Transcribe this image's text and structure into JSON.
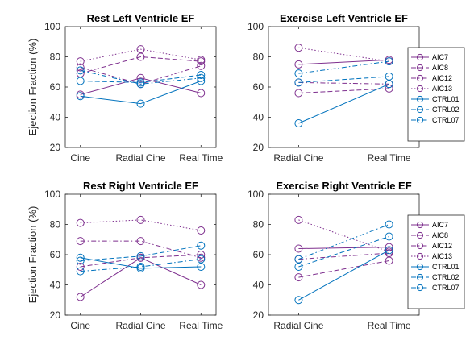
{
  "figure": {
    "ylabel": "Ejection Fraction (%)"
  },
  "colors": {
    "AIC": "#7E2F8E",
    "CTRL": "#0072BD",
    "axis": "#262626"
  },
  "chart_data": [
    {
      "type": "line",
      "title": "Rest Left Ventricle EF",
      "xlabel": "",
      "ylabel": "Ejection Fraction (%)",
      "categories": [
        "Cine",
        "Radial Cine",
        "Real Time"
      ],
      "ylim": [
        20,
        100
      ],
      "yticks": [
        20,
        40,
        60,
        80,
        100
      ],
      "grid": false,
      "legend": false,
      "series": [
        {
          "name": "AIC7",
          "group": "AIC",
          "dash": "solid",
          "values": [
            55,
            66,
            56
          ]
        },
        {
          "name": "AIC8",
          "group": "AIC",
          "dash": "dashed",
          "values": [
            69,
            80,
            77
          ]
        },
        {
          "name": "AIC12",
          "group": "AIC",
          "dash": "dashdot",
          "values": [
            73,
            62,
            74
          ]
        },
        {
          "name": "AIC13",
          "group": "AIC",
          "dash": "dotted",
          "values": [
            77,
            85,
            78
          ]
        },
        {
          "name": "CTRL01",
          "group": "CTRL",
          "dash": "solid",
          "values": [
            54,
            49,
            64
          ]
        },
        {
          "name": "CTRL02",
          "group": "CTRL",
          "dash": "dashed",
          "values": [
            64,
            63,
            68
          ]
        },
        {
          "name": "CTRL07",
          "group": "CTRL",
          "dash": "dashdot",
          "values": [
            71,
            62,
            66
          ]
        }
      ]
    },
    {
      "type": "line",
      "title": "Exercise Left Ventricle EF",
      "xlabel": "",
      "ylabel": "",
      "categories": [
        "Radial Cine",
        "Real Time"
      ],
      "ylim": [
        20,
        100
      ],
      "yticks": [
        20,
        40,
        60,
        80,
        100
      ],
      "grid": false,
      "legend": "right",
      "series": [
        {
          "name": "AIC7",
          "group": "AIC",
          "dash": "solid",
          "values": [
            75,
            78
          ]
        },
        {
          "name": "AIC8",
          "group": "AIC",
          "dash": "dashed",
          "values": [
            56,
            59
          ]
        },
        {
          "name": "AIC12",
          "group": "AIC",
          "dash": "dashdot",
          "values": [
            63,
            62
          ]
        },
        {
          "name": "AIC13",
          "group": "AIC",
          "dash": "dotted",
          "values": [
            86,
            77
          ]
        },
        {
          "name": "CTRL01",
          "group": "CTRL",
          "dash": "solid",
          "values": [
            36,
            62
          ]
        },
        {
          "name": "CTRL02",
          "group": "CTRL",
          "dash": "dashed",
          "values": [
            63,
            67
          ]
        },
        {
          "name": "CTRL07",
          "group": "CTRL",
          "dash": "dashdot",
          "values": [
            69,
            77
          ]
        }
      ]
    },
    {
      "type": "line",
      "title": "Rest Right Ventricle EF",
      "xlabel": "",
      "ylabel": "Ejection Fraction (%)",
      "categories": [
        "Cine",
        "Radial Cine",
        "Real Time"
      ],
      "ylim": [
        20,
        100
      ],
      "yticks": [
        20,
        40,
        60,
        80,
        100
      ],
      "grid": false,
      "legend": false,
      "series": [
        {
          "name": "AIC7",
          "group": "AIC",
          "dash": "solid",
          "values": [
            32,
            58,
            40
          ]
        },
        {
          "name": "AIC8",
          "group": "AIC",
          "dash": "dashed",
          "values": [
            52,
            58,
            60
          ]
        },
        {
          "name": "AIC12",
          "group": "AIC",
          "dash": "dashdot",
          "values": [
            69,
            69,
            58
          ]
        },
        {
          "name": "AIC13",
          "group": "AIC",
          "dash": "dotted",
          "values": [
            81,
            83,
            76
          ]
        },
        {
          "name": "CTRL01",
          "group": "CTRL",
          "dash": "solid",
          "values": [
            58,
            51,
            52
          ]
        },
        {
          "name": "CTRL02",
          "group": "CTRL",
          "dash": "dashed",
          "values": [
            56,
            59,
            66
          ]
        },
        {
          "name": "CTRL07",
          "group": "CTRL",
          "dash": "dashdot",
          "values": [
            49,
            52,
            57
          ]
        }
      ]
    },
    {
      "type": "line",
      "title": "Exercise Right Ventricle EF",
      "xlabel": "",
      "ylabel": "",
      "categories": [
        "Radial Cine",
        "Real Time"
      ],
      "ylim": [
        20,
        100
      ],
      "yticks": [
        20,
        40,
        60,
        80,
        100
      ],
      "grid": false,
      "legend": "right",
      "series": [
        {
          "name": "AIC7",
          "group": "AIC",
          "dash": "solid",
          "values": [
            64,
            65
          ]
        },
        {
          "name": "AIC8",
          "group": "AIC",
          "dash": "dashed",
          "values": [
            45,
            56
          ]
        },
        {
          "name": "AIC12",
          "group": "AIC",
          "dash": "dashdot",
          "values": [
            57,
            61
          ]
        },
        {
          "name": "AIC13",
          "group": "AIC",
          "dash": "dotted",
          "values": [
            83,
            62
          ]
        },
        {
          "name": "CTRL01",
          "group": "CTRL",
          "dash": "solid",
          "values": [
            30,
            63
          ]
        },
        {
          "name": "CTRL02",
          "group": "CTRL",
          "dash": "dashed",
          "values": [
            52,
            72
          ]
        },
        {
          "name": "CTRL07",
          "group": "CTRL",
          "dash": "dashdot",
          "values": [
            57,
            80
          ]
        }
      ]
    }
  ]
}
